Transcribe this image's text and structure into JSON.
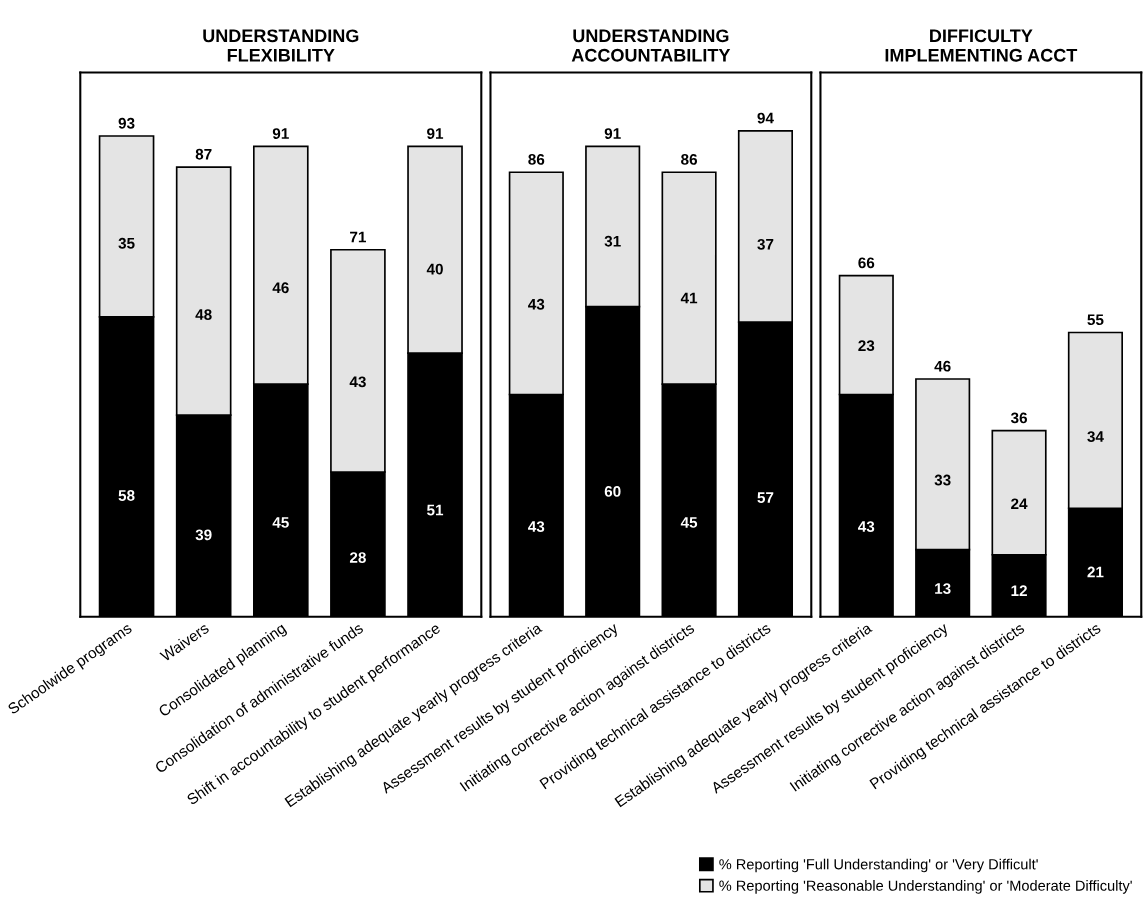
{
  "chart_data": [
    {
      "type": "bar",
      "title": "UNDERSTANDING\nFLEXIBILITY",
      "stacked": true,
      "data_labels": true,
      "legend": "bottom right",
      "tick_labels": "x",
      "grid": false,
      "categories": [
        "Schoolwide programs",
        "Waivers",
        "Consolidated planning",
        "Consolidation of administrative funds",
        "Shift in accountability to student performance"
      ],
      "series": [
        {
          "name": "% Reporting 'Full Understanding' or 'Very Difficult'",
          "color": "#000000",
          "values": [
            58,
            39,
            45,
            28,
            51
          ]
        },
        {
          "name": "% Reporting 'Reasonable Understanding' or 'Moderate Difficulty'",
          "color": "#e4e4e4",
          "values": [
            35,
            48,
            46,
            43,
            40
          ]
        }
      ],
      "totals": [
        "93",
        "87",
        "91",
        "71",
        "91"
      ]
    },
    {
      "type": "bar",
      "title": "UNDERSTANDING\nACCOUNTABILITY",
      "stacked": true,
      "data_labels": true,
      "tick_labels": "x",
      "grid": false,
      "categories": [
        "Establishing adequate yearly progress criteria",
        "Assessment results by student proficiency",
        "Initiating corrective action against districts",
        "Providing technical assistance to districts"
      ],
      "series": [
        {
          "color": "#000000",
          "values": [
            43,
            60,
            45,
            57
          ]
        },
        {
          "color": "#e4e4e4",
          "values": [
            43,
            31,
            41,
            37
          ]
        }
      ],
      "totals": [
        "86",
        "91",
        "86",
        "94"
      ]
    },
    {
      "type": "bar",
      "title": "DIFFICULTY\nIMPLEMENTING ACCT",
      "stacked": true,
      "data_labels": true,
      "tick_labels": "x",
      "grid": false,
      "categories": [
        "Establishing adequate yearly progress criteria",
        "Assessment results by student proficiency",
        "Initiating corrective action against districts",
        "Providing technical assistance to districts"
      ],
      "series": [
        {
          "color": "#000000",
          "values": [
            43,
            13,
            12,
            21
          ]
        },
        {
          "color": "#e4e4e4",
          "values": [
            23,
            33,
            24,
            34
          ]
        }
      ],
      "totals": [
        "66",
        "46",
        "36",
        "55"
      ]
    }
  ]
}
